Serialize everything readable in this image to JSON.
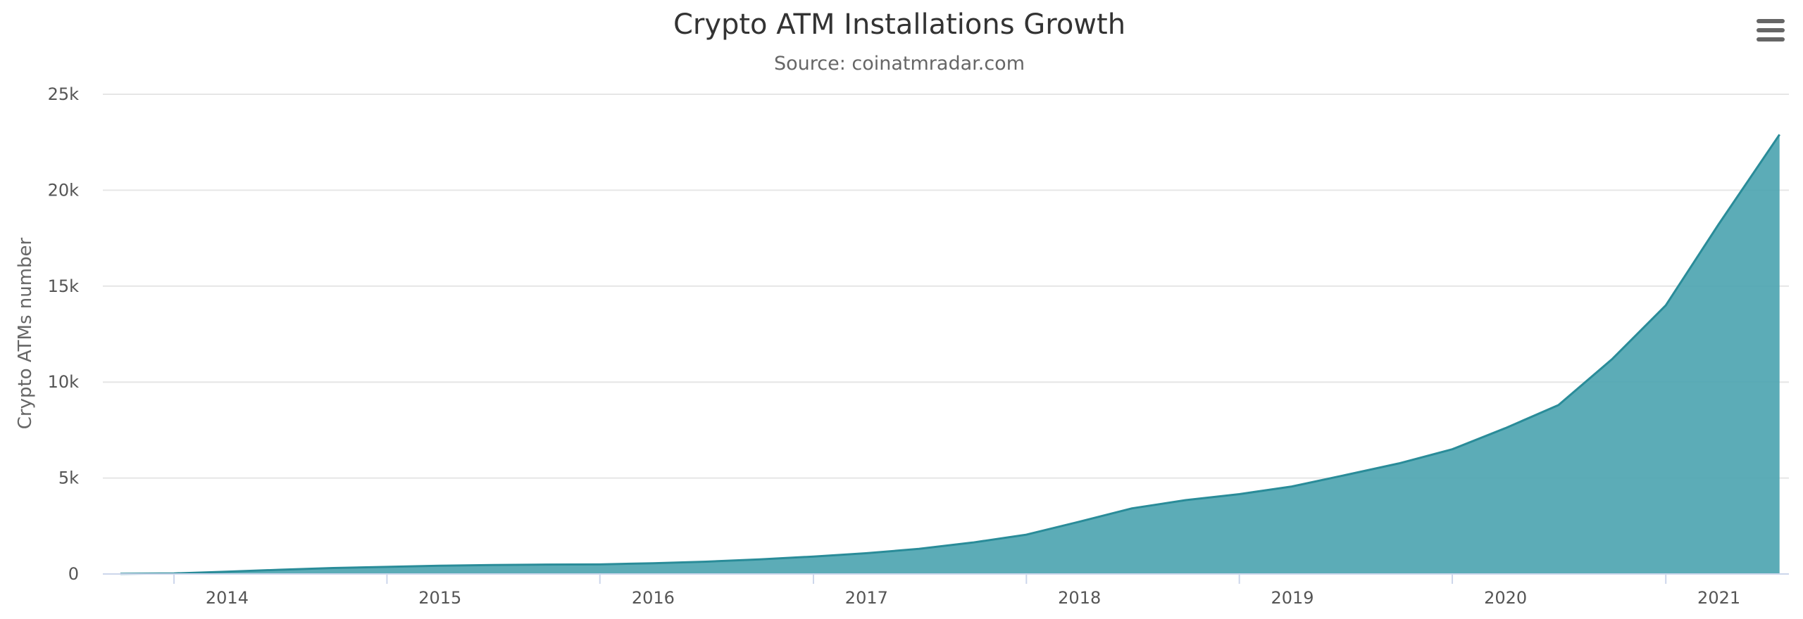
{
  "chart_data": {
    "type": "area",
    "title": "Crypto ATM Installations Growth",
    "subtitle": "Source: coinatmradar.com",
    "xlabel": "",
    "ylabel": "Crypto ATMs number",
    "x_tick_labels": [
      "2014",
      "2015",
      "2016",
      "2017",
      "2018",
      "2019",
      "2020",
      "2021"
    ],
    "y_tick_labels": [
      "0",
      "5k",
      "10k",
      "15k",
      "20k",
      "25k"
    ],
    "ylim": [
      0,
      25000
    ],
    "xlim": [
      "2013-09-01",
      "2021-07-31"
    ],
    "grid": true,
    "legend": false,
    "color": "#4aa3af",
    "line_color": "#2a8c99",
    "series": [
      {
        "points": [
          [
            "2013-10-01",
            10
          ],
          [
            "2014-01-01",
            30
          ],
          [
            "2014-04-01",
            120
          ],
          [
            "2014-07-01",
            220
          ],
          [
            "2014-10-01",
            310
          ],
          [
            "2015-01-01",
            370
          ],
          [
            "2015-04-01",
            430
          ],
          [
            "2015-07-01",
            470
          ],
          [
            "2015-10-01",
            490
          ],
          [
            "2016-01-01",
            500
          ],
          [
            "2016-04-01",
            560
          ],
          [
            "2016-07-01",
            640
          ],
          [
            "2016-10-01",
            760
          ],
          [
            "2017-01-01",
            910
          ],
          [
            "2017-04-01",
            1080
          ],
          [
            "2017-07-01",
            1310
          ],
          [
            "2017-10-01",
            1640
          ],
          [
            "2018-01-01",
            2050
          ],
          [
            "2018-04-01",
            2720
          ],
          [
            "2018-07-01",
            3420
          ],
          [
            "2018-10-01",
            3850
          ],
          [
            "2019-01-01",
            4160
          ],
          [
            "2019-04-01",
            4560
          ],
          [
            "2019-07-01",
            5150
          ],
          [
            "2019-10-01",
            5760
          ],
          [
            "2020-01-01",
            6500
          ],
          [
            "2020-04-01",
            7600
          ],
          [
            "2020-07-01",
            8800
          ],
          [
            "2020-10-01",
            11200
          ],
          [
            "2021-01-01",
            14000
          ],
          [
            "2021-04-01",
            18200
          ],
          [
            "2021-07-15",
            22900
          ]
        ]
      }
    ]
  },
  "ui": {
    "menu_icon": "hamburger-menu-icon"
  }
}
